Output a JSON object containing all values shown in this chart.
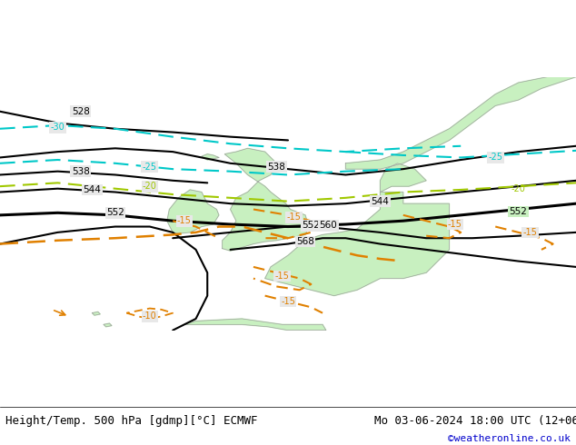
{
  "title_left": "Height/Temp. 500 hPa [gdmp][°C] ECMWF",
  "title_right": "Mo 03-06-2024 18:00 UTC (12+06)",
  "credit": "©weatheronline.co.uk",
  "background_color": "#e8e8e8",
  "land_color": "#c8f0c0",
  "sea_color": "#e8e8e8",
  "coast_color": "#a0a0a0",
  "height_contour_color": "#000000",
  "temp_cyan_color": "#00c8c8",
  "temp_green_color": "#a0c800",
  "temp_orange_color": "#e08000",
  "title_fontsize": 9,
  "credit_fontsize": 8,
  "figsize": [
    6.34,
    4.9
  ],
  "dpi": 100
}
